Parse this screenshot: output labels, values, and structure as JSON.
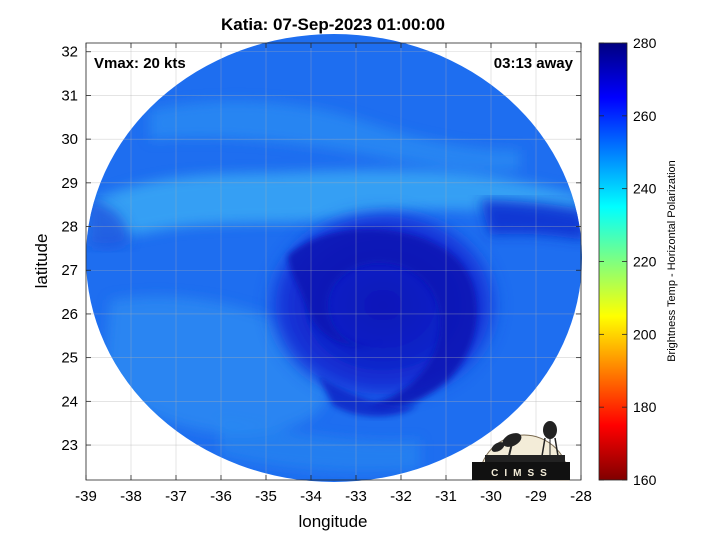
{
  "figure": {
    "title": "Katia: 07-Sep-2023 01:00:00",
    "xlabel": "longitude",
    "ylabel": "latitude",
    "vmax_label": "Vmax: 20 kts",
    "time_label": "03:13 away",
    "logo_text": "CIMSS"
  },
  "colorbar": {
    "label": "Brightness Temp - Horizontal Polarization",
    "ticks": [
      "280",
      "260",
      "240",
      "220",
      "200",
      "180",
      "160"
    ],
    "min": 160,
    "max": 280,
    "colormap": "jet"
  },
  "map": {
    "xlim": [
      -39,
      -28
    ],
    "ylim": [
      22.2,
      32.2
    ],
    "xticks": [
      "-39",
      "-38",
      "-37",
      "-36",
      "-35",
      "-34",
      "-33",
      "-32",
      "-31",
      "-30",
      "-29",
      "-28"
    ],
    "yticks": [
      "32",
      "31",
      "30",
      "29",
      "28",
      "27",
      "26",
      "25",
      "24",
      "23"
    ],
    "grid": true,
    "storm_center": {
      "lon": -32.4,
      "lat": 26.2
    },
    "background_temp_range": [
      245,
      265
    ],
    "colors": {
      "outer_field": "#1e6ef0",
      "cyan_band": "#3aa8f5",
      "core_dark": "#0d1fc6",
      "core_mid": "#1535d8"
    }
  }
}
